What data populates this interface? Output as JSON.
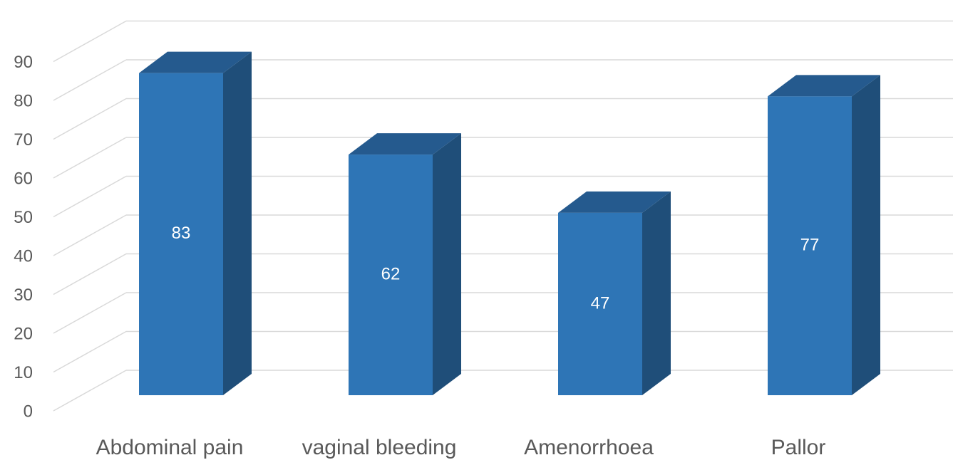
{
  "chart_data": {
    "type": "bar3d",
    "categories": [
      "Abdominal pain",
      "vaginal bleeding",
      "Amenorrhoea",
      "Pallor"
    ],
    "values": [
      83,
      62,
      47,
      77
    ],
    "color": "#2e75b6",
    "ylim": [
      0,
      90
    ],
    "yticks": [
      0,
      10,
      20,
      30,
      40,
      50,
      60,
      70,
      80,
      90
    ],
    "grid": true
  }
}
